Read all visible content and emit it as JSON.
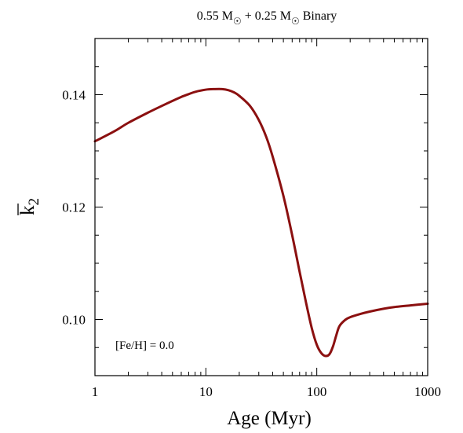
{
  "chart_data": {
    "type": "line",
    "title": {
      "prefix": "0.55 M",
      "middle": " + 0.25 M",
      "suffix": " Binary",
      "sun_symbol": "☉"
    },
    "xlabel": "Age (Myr)",
    "ylabel": {
      "base": "k",
      "subscript": "2"
    },
    "xscale": "log",
    "xlim": [
      1,
      1000
    ],
    "ylim": [
      0.09,
      0.15
    ],
    "xticks": [
      {
        "value": 1,
        "label": "1"
      },
      {
        "value": 10,
        "label": "10"
      },
      {
        "value": 100,
        "label": "100"
      },
      {
        "value": 1000,
        "label": "1000"
      }
    ],
    "yticks": [
      {
        "value": 0.1,
        "label": "0.10"
      },
      {
        "value": 0.12,
        "label": "0.12"
      },
      {
        "value": 0.14,
        "label": "0.14"
      }
    ],
    "grid": false,
    "annotation": "[Fe/H] = 0.0",
    "series": [
      {
        "color": "#8b1010",
        "x": [
          1,
          1.5,
          2,
          3,
          4,
          5,
          6,
          7,
          8,
          10,
          12,
          14,
          16,
          18,
          20,
          25,
          30,
          35,
          40,
          50,
          60,
          70,
          80,
          90,
          100,
          110,
          120,
          130,
          140,
          150,
          160,
          180,
          200,
          250,
          300,
          400,
          500,
          700,
          1000
        ],
        "y": [
          0.1317,
          0.1335,
          0.135,
          0.1368,
          0.138,
          0.1389,
          0.1396,
          0.1401,
          0.1405,
          0.1409,
          0.141,
          0.141,
          0.1408,
          0.1404,
          0.1398,
          0.138,
          0.1355,
          0.1325,
          0.129,
          0.122,
          0.115,
          0.1085,
          0.103,
          0.0985,
          0.0955,
          0.094,
          0.0935,
          0.0938,
          0.0952,
          0.0972,
          0.0988,
          0.0999,
          0.1004,
          0.101,
          0.1014,
          0.1019,
          0.1022,
          0.1025,
          0.1028
        ]
      }
    ]
  }
}
